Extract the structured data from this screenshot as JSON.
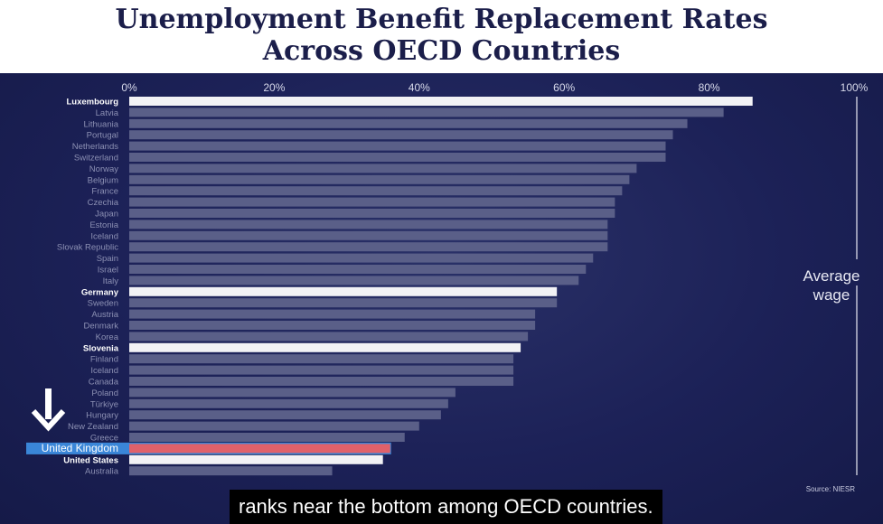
{
  "title": {
    "line1": "Unemployment Benefit Replacement Rates",
    "line2": "Across OECD Countries"
  },
  "reference_label": {
    "line1": "Average",
    "line2": "wage"
  },
  "source": "Source: NIESR",
  "caption": "ranks near the bottom among OECD countries.",
  "colors": {
    "background": "#1c2157",
    "bar_default": "#5a5f88",
    "bar_highlight": "#f2f2f5",
    "bar_uk": "#e0616a",
    "uk_label_bg": "#3a86d8",
    "title": "#1b1e4a"
  },
  "chart_data": {
    "type": "bar",
    "orientation": "horizontal",
    "xlim": [
      0,
      100
    ],
    "x_tick_labels": [
      "0%",
      "20%",
      "40%",
      "60%",
      "80%",
      "100%"
    ],
    "x_ticks": [
      0,
      20,
      40,
      60,
      80,
      100
    ],
    "categories": [
      "Luxembourg",
      "Latvia",
      "Lithuania",
      "Portugal",
      "Netherlands",
      "Switzerland",
      "Norway",
      "Belgium",
      "France",
      "Czechia",
      "Japan",
      "Estonia",
      "Iceland",
      "Slovak Republic",
      "Spain",
      "Israel",
      "Italy",
      "Germany",
      "Sweden",
      "Austria",
      "Denmark",
      "Korea",
      "Slovenia",
      "Finland",
      "Iceland",
      "Canada",
      "Poland",
      "Türkiye",
      "Hungary",
      "New Zealand",
      "Greece",
      "United Kingdom",
      "United States",
      "Australia"
    ],
    "values": [
      86,
      82,
      77,
      75,
      74,
      74,
      70,
      69,
      68,
      67,
      67,
      66,
      66,
      66,
      64,
      63,
      62,
      59,
      59,
      56,
      56,
      55,
      54,
      53,
      53,
      53,
      45,
      44,
      43,
      40,
      38,
      36,
      35,
      28
    ],
    "highlighted": [
      "Luxembourg",
      "Germany",
      "Slovenia",
      "United States"
    ],
    "focus": "United Kingdom",
    "reference_line": {
      "value": 100
    }
  }
}
